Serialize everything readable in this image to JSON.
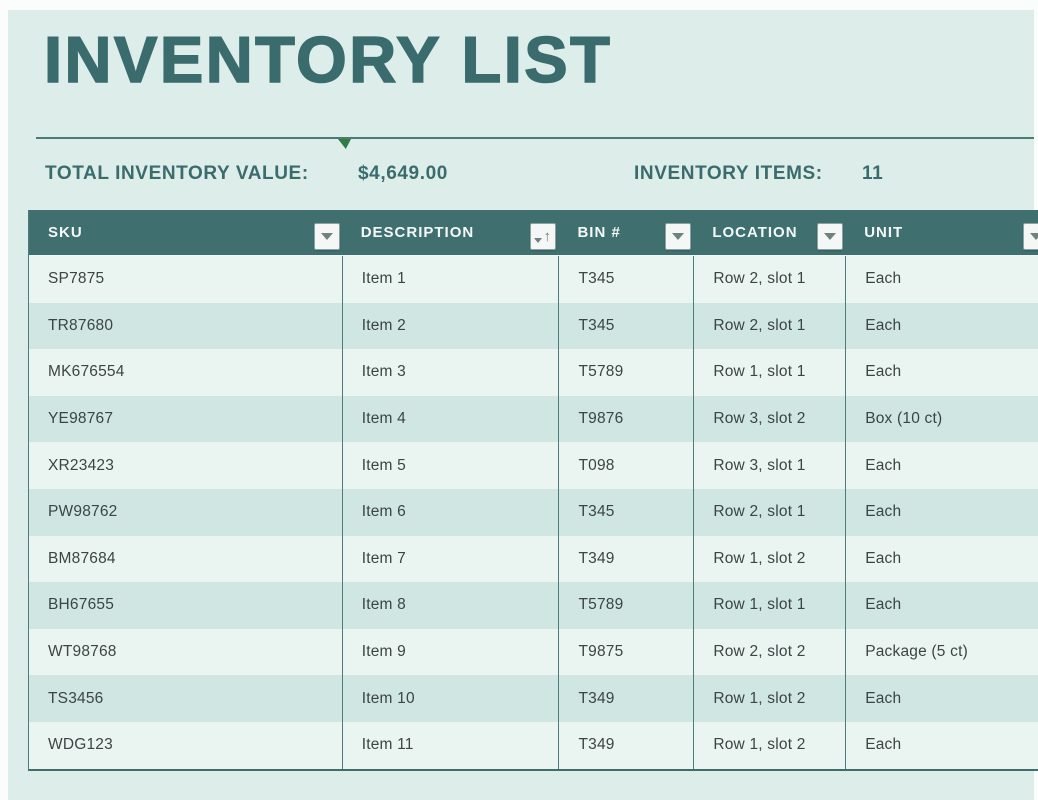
{
  "page": {
    "title": "INVENTORY LIST"
  },
  "stats": {
    "total_value_label": "TOTAL INVENTORY VALUE:",
    "total_value": "$4,649.00",
    "items_label": "INVENTORY ITEMS:",
    "items_count": "11"
  },
  "table": {
    "columns": [
      {
        "label": "SKU",
        "sort": "none"
      },
      {
        "label": "DESCRIPTION",
        "sort": "asc"
      },
      {
        "label": "BIN #",
        "sort": "none"
      },
      {
        "label": "LOCATION",
        "sort": "none"
      },
      {
        "label": "UNIT",
        "sort": "none"
      }
    ],
    "rows": [
      [
        "SP7875",
        "Item 1",
        "T345",
        "Row 2, slot 1",
        "Each"
      ],
      [
        "TR87680",
        "Item 2",
        "T345",
        "Row 2, slot 1",
        "Each"
      ],
      [
        "MK676554",
        "Item 3",
        "T5789",
        "Row 1, slot 1",
        "Each"
      ],
      [
        "YE98767",
        "Item 4",
        "T9876",
        "Row 3, slot 2",
        "Box (10 ct)"
      ],
      [
        "XR23423",
        "Item 5",
        "T098",
        "Row 3, slot 1",
        "Each"
      ],
      [
        "PW98762",
        "Item 6",
        "T345",
        "Row 2, slot 1",
        "Each"
      ],
      [
        "BM87684",
        "Item 7",
        "T349",
        "Row 1, slot 2",
        "Each"
      ],
      [
        "BH67655",
        "Item 8",
        "T5789",
        "Row 1, slot 1",
        "Each"
      ],
      [
        "WT98768",
        "Item 9",
        "T9875",
        "Row 2, slot 2",
        "Package (5 ct)"
      ],
      [
        "TS3456",
        "Item 10",
        "T349",
        "Row 1, slot 2",
        "Each"
      ],
      [
        "WDG123",
        "Item 11",
        "T349",
        "Row 1, slot 2",
        "Each"
      ]
    ]
  },
  "colors": {
    "panel_bg": "#dcedea",
    "header_bg": "#3f6f6f",
    "title_text": "#3a6b6d",
    "row_light": "#eaf5f2",
    "row_alt": "#cfe6e2",
    "grid_border": "#4d7c7a",
    "marker_green": "#2e7d46"
  }
}
